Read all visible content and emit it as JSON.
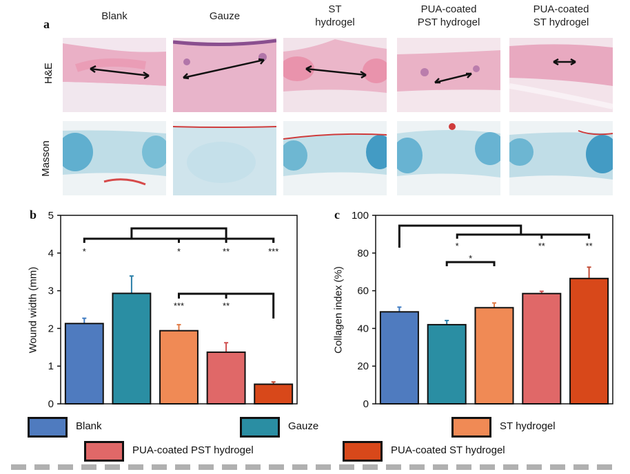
{
  "panel_a": {
    "letter": "a",
    "columns": [
      "Blank",
      "Gauze",
      "ST\nhydrogel",
      "PUA-coated\nPST hydrogel",
      "PUA-coated\nST hydrogel"
    ],
    "rows": [
      "H&E",
      "Masson"
    ]
  },
  "panel_b": {
    "letter": "b"
  },
  "panel_c": {
    "letter": "c"
  },
  "colors": {
    "blank": "#4f7bbf",
    "gauze": "#2a8ea3",
    "st_hydrogel": "#f08a55",
    "pua_pst": "#e06868",
    "pua_st": "#d8481a",
    "he_tissue": "#e8a5c0",
    "masson_bg": "#b9dbe6"
  },
  "chart_data": [
    {
      "type": "bar",
      "panel": "b",
      "categories": [
        "Blank",
        "Gauze",
        "ST hydrogel",
        "PUA-coated PST hydrogel",
        "PUA-coated ST hydrogel"
      ],
      "values": [
        2.13,
        2.93,
        1.94,
        1.37,
        0.52
      ],
      "errors": [
        0.14,
        0.46,
        0.16,
        0.25,
        0.06
      ],
      "title": "",
      "xlabel": "",
      "ylabel": "Wound width (mm)",
      "ylim": [
        0,
        5
      ],
      "yticks": [
        "0",
        "1",
        "2",
        "3",
        "4",
        "5"
      ],
      "significance": [
        "*",
        "*",
        "**",
        "***",
        "***",
        "**"
      ]
    },
    {
      "type": "bar",
      "panel": "c",
      "categories": [
        "Blank",
        "Gauze",
        "ST hydrogel",
        "PUA-coated PST hydrogel",
        "PUA-coated ST hydrogel"
      ],
      "values": [
        48.8,
        42.0,
        51.0,
        58.5,
        66.5
      ],
      "errors": [
        2.5,
        2.2,
        2.5,
        1.2,
        6.0
      ],
      "title": "",
      "xlabel": "",
      "ylabel": "Collagen index (%)",
      "ylim": [
        0,
        100
      ],
      "yticks": [
        "0",
        "20",
        "40",
        "60",
        "80",
        "100"
      ],
      "significance": [
        "*",
        "**",
        "**",
        "*"
      ]
    }
  ],
  "legend": [
    "Blank",
    "Gauze",
    "ST hydrogel",
    "PUA-coated PST hydrogel",
    "PUA-coated ST hydrogel"
  ]
}
